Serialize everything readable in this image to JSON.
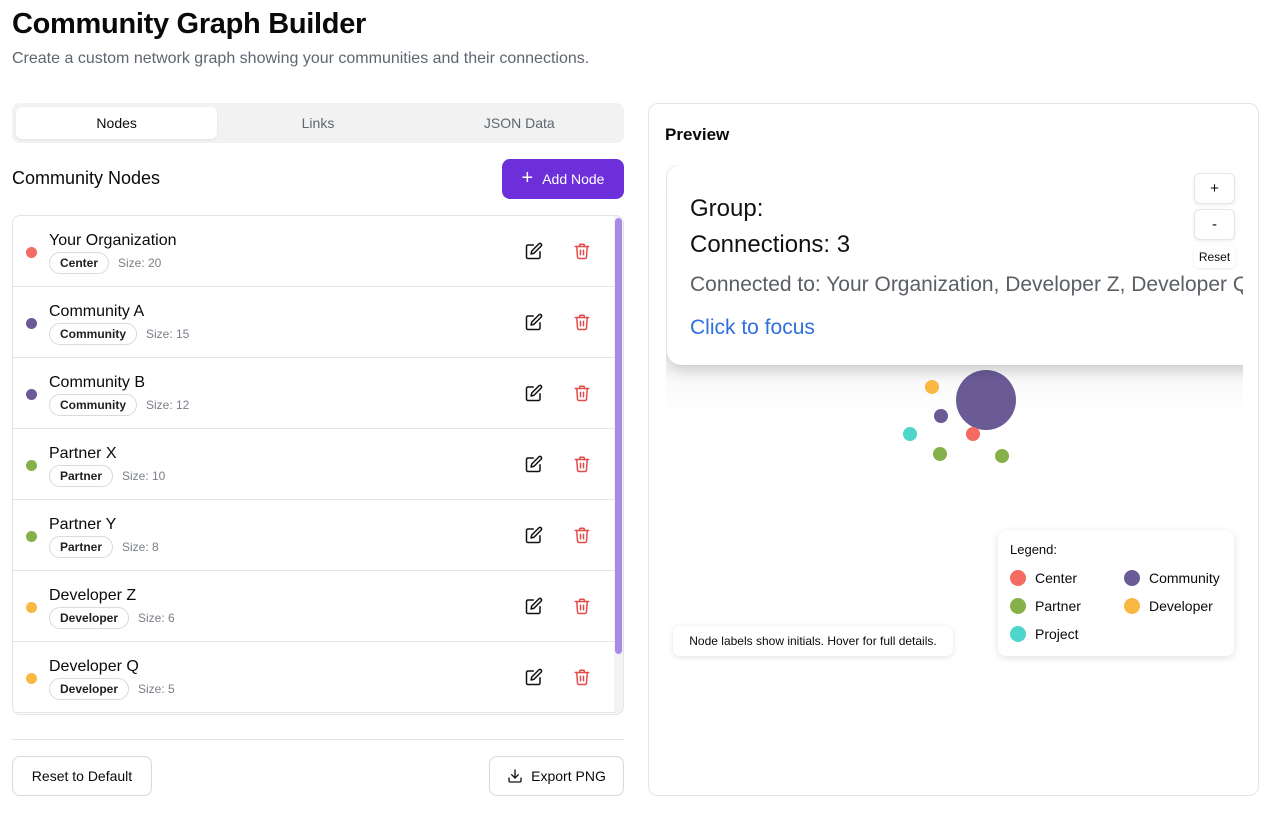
{
  "header": {
    "title": "Community Graph Builder",
    "subtitle": "Create a custom network graph showing your communities and their connections."
  },
  "tabs": [
    {
      "label": "Nodes",
      "active": true
    },
    {
      "label": "Links",
      "active": false
    },
    {
      "label": "JSON Data",
      "active": false
    }
  ],
  "nodes_section": {
    "title": "Community Nodes",
    "add_label": "Add Node"
  },
  "nodes": [
    {
      "name": "Your Organization",
      "group": "Center",
      "size": "Size: 20",
      "color": "#f36b61"
    },
    {
      "name": "Community A",
      "group": "Community",
      "size": "Size: 15",
      "color": "#6a5a96"
    },
    {
      "name": "Community B",
      "group": "Community",
      "size": "Size: 12",
      "color": "#6a5a96"
    },
    {
      "name": "Partner X",
      "group": "Partner",
      "size": "Size: 10",
      "color": "#86b049"
    },
    {
      "name": "Partner Y",
      "group": "Partner",
      "size": "Size: 8",
      "color": "#86b049"
    },
    {
      "name": "Developer Z",
      "group": "Developer",
      "size": "Size: 6",
      "color": "#f8b842"
    },
    {
      "name": "Developer Q",
      "group": "Developer",
      "size": "Size: 5",
      "color": "#f8b842"
    }
  ],
  "footer": {
    "reset_label": "Reset to Default",
    "export_label": "Export PNG"
  },
  "preview": {
    "title": "Preview",
    "tooltip": {
      "group": "Group:",
      "connections": "Connections: 3",
      "connected_to": "Connected to: Your Organization, Developer Z, Developer Q",
      "focus": "Click to focus"
    },
    "zoom_in": "+",
    "zoom_out": "-",
    "zoom_reset": "Reset",
    "hint": "Node labels show initials. Hover for full details.",
    "legend": {
      "title": "Legend:",
      "items": [
        {
          "label": "Center",
          "color": "#f36b61"
        },
        {
          "label": "Community",
          "color": "#6a5a96"
        },
        {
          "label": "Partner",
          "color": "#86b049"
        },
        {
          "label": "Developer",
          "color": "#f8b842"
        },
        {
          "label": "Project",
          "color": "#4fd6cc"
        }
      ]
    }
  },
  "colors": {
    "accent": "#6d2fd9",
    "delete": "#e24b4b",
    "link": "#2f6fe0"
  }
}
